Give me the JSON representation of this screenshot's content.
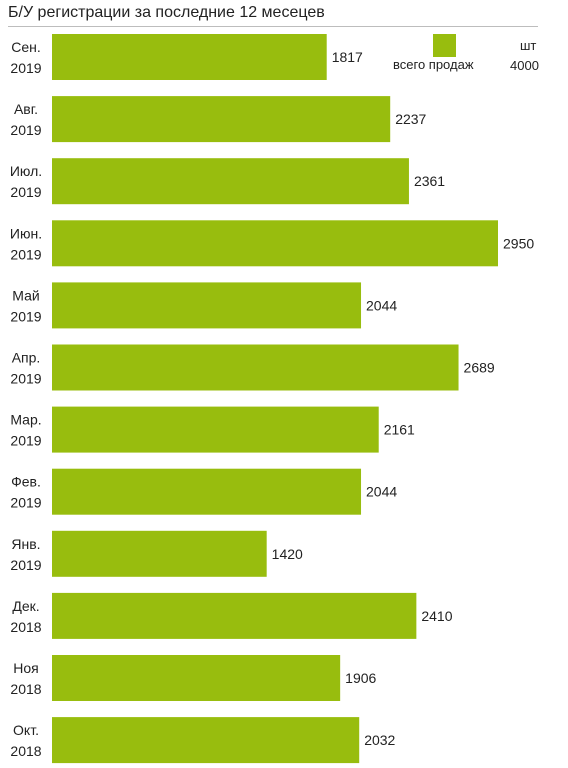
{
  "chart_data": {
    "type": "bar",
    "orientation": "horizontal",
    "title": "Б/У регистрации за последние 12 месецев",
    "categories": [
      [
        "Сен.",
        "2019"
      ],
      [
        "Авг.",
        "2019"
      ],
      [
        "Июл.",
        "2019"
      ],
      [
        "Июн.",
        "2019"
      ],
      [
        "Май",
        "2019"
      ],
      [
        "Апр.",
        "2019"
      ],
      [
        "Мар.",
        "2019"
      ],
      [
        "Фев.",
        "2019"
      ],
      [
        "Янв.",
        "2019"
      ],
      [
        "Дек.",
        "2018"
      ],
      [
        "Ноя",
        "2018"
      ],
      [
        "Окт.",
        "2018"
      ]
    ],
    "values": [
      1817,
      2237,
      2361,
      2950,
      2044,
      2689,
      2161,
      2044,
      1420,
      2410,
      1906,
      2032
    ],
    "xlim": [
      0,
      3000
    ],
    "legend": {
      "label": "всего продаж",
      "placement": "top-right"
    },
    "unit_label": "шт",
    "scale_label": "4000",
    "bar_color": "#98bd0e"
  }
}
